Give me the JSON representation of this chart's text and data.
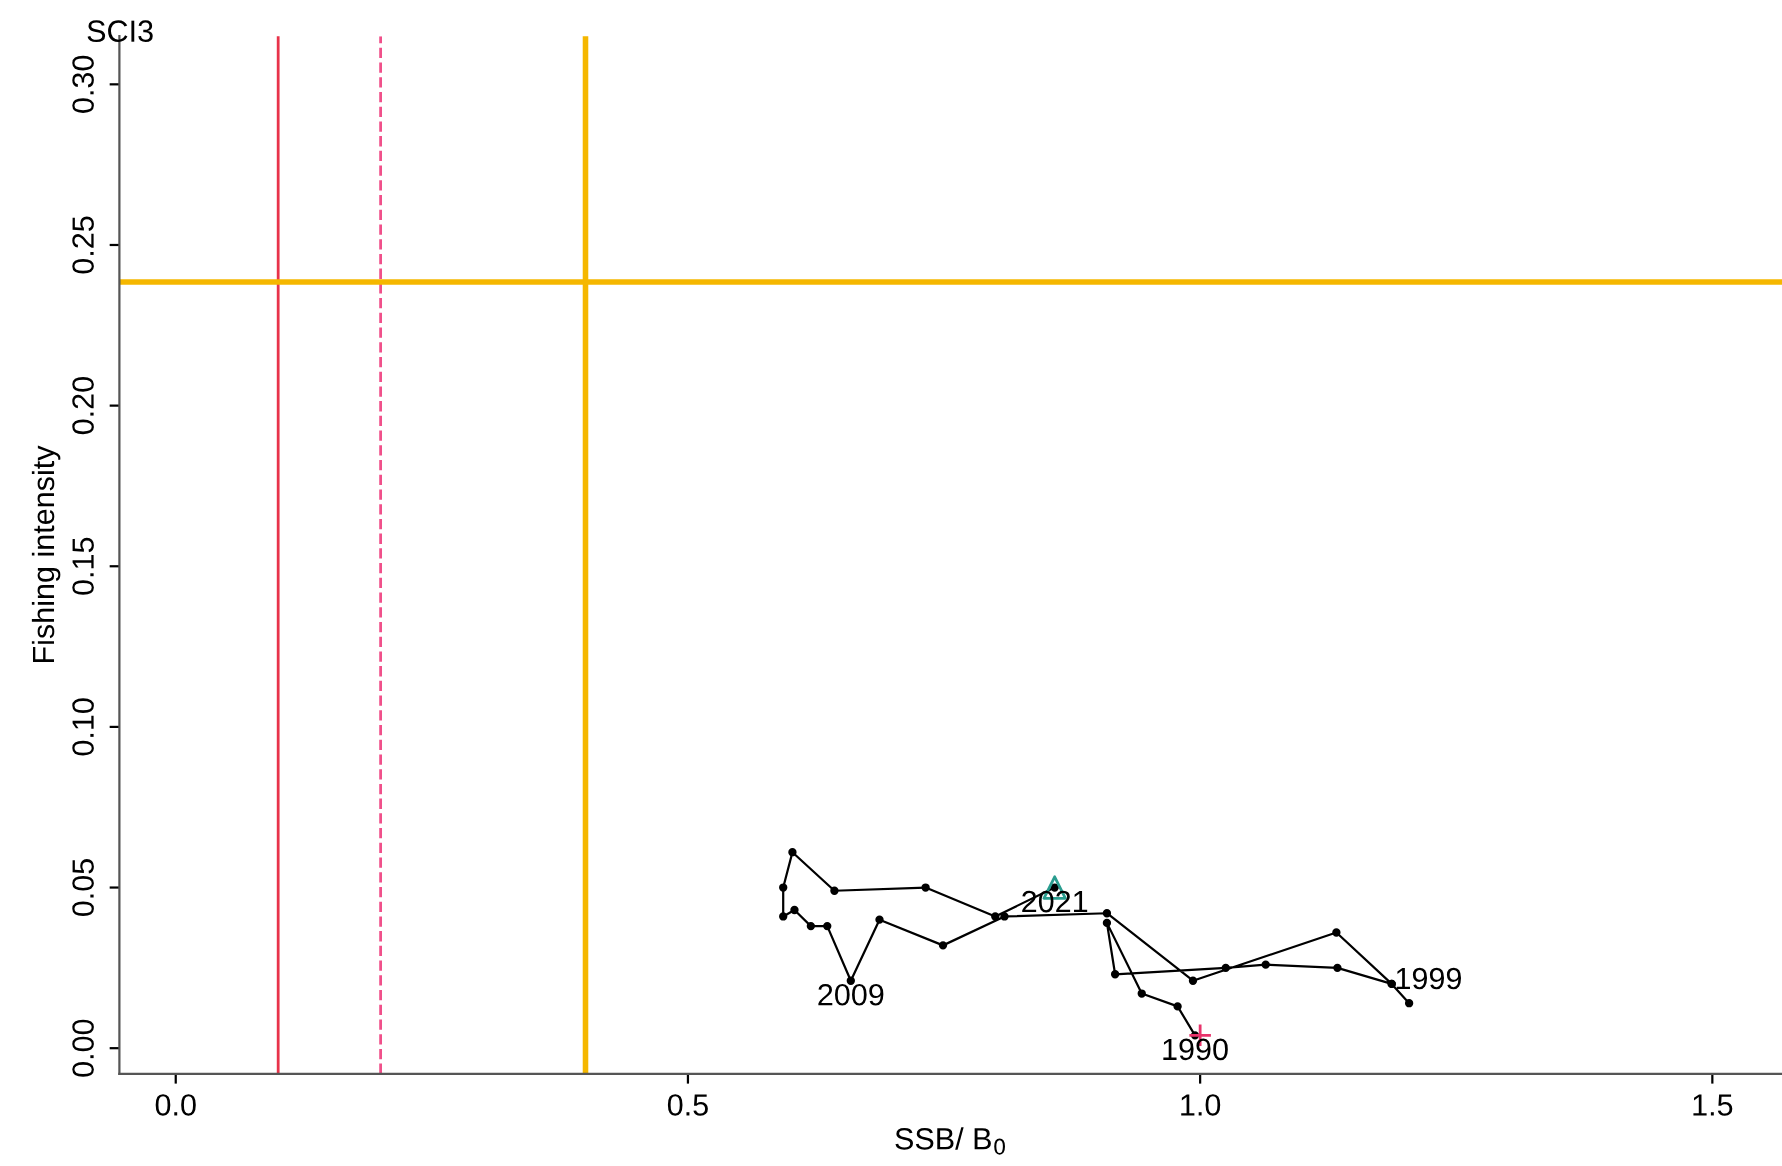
{
  "chart_data": {
    "type": "line",
    "title": "SCI3",
    "xlabel": "SSB/ B$_{0}$",
    "ylabel": "Fishing intensity",
    "xlim": [
      -0.055,
      1.568
    ],
    "ylim": [
      -0.008,
      0.315
    ],
    "xticks": [
      {
        "value": 0,
        "label": "0.0"
      },
      0.5,
      {
        "value": 1,
        "label": "1.0"
      },
      1.5
    ],
    "yticks": [
      {
        "value": 0,
        "label": "0.00"
      },
      0.05,
      {
        "value": 0.1,
        "label": "0.10"
      },
      0.15,
      {
        "value": 0.2,
        "label": "0.20"
      },
      0.25,
      {
        "value": 0.3,
        "label": "0.30"
      }
    ],
    "grid": false,
    "legend": false,
    "marker": "circle",
    "line_style": "solid",
    "series": [
      {
        "color": "#000000",
        "x": [
          0.995,
          0.978,
          0.943,
          0.909,
          0.917,
          1.025,
          1.064,
          1.134,
          1.187,
          1.204,
          1.187,
          1.133,
          0.993,
          0.909,
          0.809,
          0.749,
          0.687,
          0.659,
          0.636,
          0.62,
          0.604,
          0.593,
          0.593,
          0.602,
          0.643,
          0.732,
          0.8,
          0.858
        ],
        "values": [
          0.004,
          0.013,
          0.017,
          0.039,
          0.023,
          0.025,
          0.026,
          0.025,
          0.02,
          0.014,
          0.02,
          0.036,
          0.021,
          0.042,
          0.041,
          0.032,
          0.04,
          0.021,
          0.038,
          0.038,
          0.043,
          0.041,
          0.05,
          0.061,
          0.049,
          0.05,
          0.041,
          0.05
        ]
      },
      {
        "type": "scatter",
        "color": "#e8336b",
        "marker": "cross",
        "x": [
          1.0
        ],
        "values": [
          0.004
        ]
      },
      {
        "type": "scatter",
        "color": "#2a9d8f",
        "marker": "triangle",
        "x": [
          0.858
        ],
        "values": [
          0.05
        ]
      }
    ],
    "ref_lines": [
      {
        "axis": "x",
        "value": 0.1,
        "color": "#e8334a",
        "line_style": "solid"
      },
      {
        "axis": "x",
        "value": 0.2,
        "color": "#f0508a",
        "line_style": "dashed"
      },
      {
        "axis": "x",
        "value": 0.4,
        "color": "#f5b700",
        "line_style": "solid"
      },
      {
        "axis": "y",
        "value": 0.2385,
        "color": "#f5b700",
        "line_style": "solid"
      }
    ],
    "annotations": [
      {
        "text": "1990",
        "x": 0.995,
        "y": 0.004
      },
      {
        "text": "2009",
        "x": 0.659,
        "y": 0.021
      },
      {
        "text": "1999",
        "x": 1.187,
        "y": 0.02
      },
      {
        "text": "2021",
        "x": 0.858,
        "y": 0.05
      }
    ]
  }
}
